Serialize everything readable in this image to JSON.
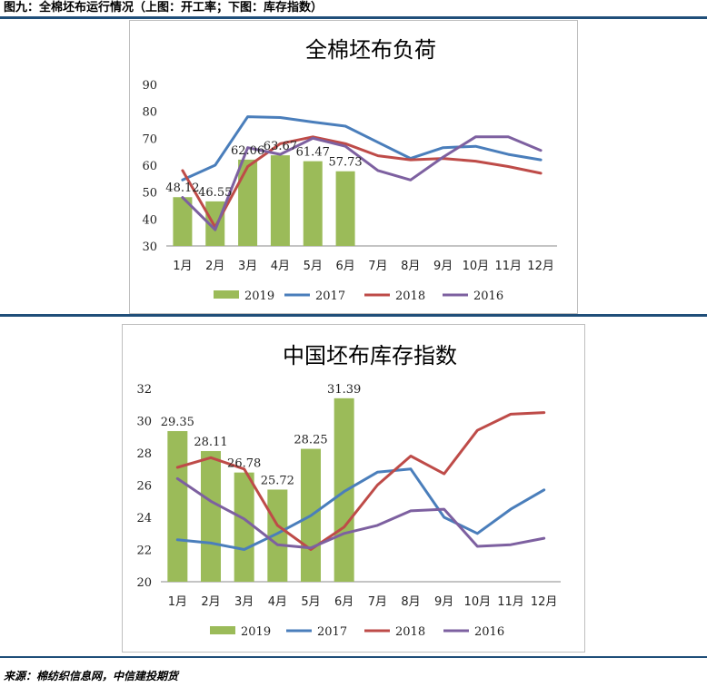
{
  "figure_title": "图九：全棉坯布运行情况（上图：开工率；下图：库存指数）",
  "source": "来源：棉纺织信息网，中信建投期货",
  "colors": {
    "series_2019": "#9bbb59",
    "series_2017": "#4a7ebb",
    "series_2018": "#be4b48",
    "series_2016": "#7d60a0",
    "rule": "#1f4e79"
  },
  "chart_data": [
    {
      "type": "bar+line",
      "title": "全棉坯布负荷",
      "categories": [
        "1月",
        "2月",
        "3月",
        "4月",
        "5月",
        "6月",
        "7月",
        "8月",
        "9月",
        "10月",
        "11月",
        "12月"
      ],
      "ylim": [
        30,
        90
      ],
      "yticks": [
        30,
        40,
        50,
        60,
        70,
        80,
        90
      ],
      "grid": false,
      "legend_position": "bottom",
      "bar_series": {
        "name": "2019",
        "values": [
          48.12,
          46.55,
          62.06,
          63.67,
          61.47,
          57.73
        ],
        "labels": [
          "48.12",
          "46.55",
          "62.06",
          "63.67",
          "61.47",
          "57.73"
        ]
      },
      "line_series": [
        {
          "name": "2017",
          "values": [
            54.5,
            60,
            78,
            77.7,
            76,
            74.5,
            68.5,
            62.5,
            66.5,
            67,
            64,
            62
          ]
        },
        {
          "name": "2018",
          "values": [
            58,
            37,
            59.5,
            68,
            70.5,
            68,
            63.5,
            62,
            62.5,
            61.5,
            59.5,
            57
          ]
        },
        {
          "name": "2016",
          "values": [
            48,
            36,
            66.5,
            64,
            70,
            67,
            58,
            54.5,
            63,
            70.5,
            70.5,
            65.5
          ]
        }
      ]
    },
    {
      "type": "bar+line",
      "title": "中国坯布库存指数",
      "categories": [
        "1月",
        "2月",
        "3月",
        "4月",
        "5月",
        "6月",
        "7月",
        "8月",
        "9月",
        "10月",
        "11月",
        "12月"
      ],
      "ylim": [
        20,
        32
      ],
      "yticks": [
        20,
        22,
        24,
        26,
        28,
        30,
        32
      ],
      "grid": false,
      "legend_position": "bottom",
      "bar_series": {
        "name": "2019",
        "values": [
          29.35,
          28.11,
          26.78,
          25.72,
          28.25,
          31.39
        ],
        "labels": [
          "29.35",
          "28.11",
          "26.78",
          "25.72",
          "28.25",
          "31.39"
        ]
      },
      "line_series": [
        {
          "name": "2017",
          "values": [
            22.6,
            22.4,
            22.0,
            23.0,
            24.1,
            25.6,
            26.8,
            27.0,
            24.0,
            23.0,
            24.5,
            25.7
          ]
        },
        {
          "name": "2018",
          "values": [
            27.1,
            27.7,
            27.0,
            23.5,
            22.0,
            23.4,
            26.0,
            27.8,
            26.7,
            29.4,
            30.4,
            30.5
          ]
        },
        {
          "name": "2016",
          "values": [
            26.4,
            25.0,
            23.9,
            22.3,
            22.1,
            23.0,
            23.5,
            24.4,
            24.5,
            22.2,
            22.3,
            22.7
          ]
        }
      ]
    }
  ]
}
